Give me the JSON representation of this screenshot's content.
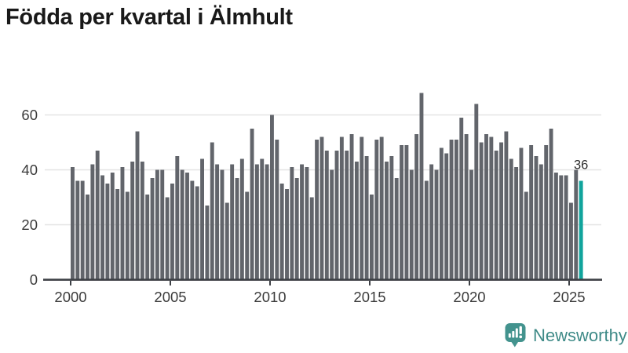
{
  "title": "Födda per kvartal i Älmhult",
  "colors": {
    "bar": "#62656b",
    "highlight": "#10a49c",
    "axis": "#3d4045",
    "grid": "#e4e4e4",
    "tick_text": "#3c3c3c",
    "value_label": "#2e2e2e",
    "title": "#191919",
    "logo": "#3e8a87",
    "logo_fill": "#43938e"
  },
  "chart_data": {
    "type": "bar",
    "title": "Födda per kvartal i Älmhult",
    "x_unit": "quarter",
    "x_start_year": 2000,
    "x_start_quarter": "Q1",
    "x_end_quarter": "2025-Q3",
    "values": [
      41,
      36,
      36,
      31,
      42,
      47,
      38,
      35,
      39,
      33,
      41,
      32,
      43,
      54,
      43,
      31,
      37,
      40,
      40,
      30,
      35,
      45,
      40,
      39,
      36,
      34,
      44,
      27,
      50,
      42,
      40,
      28,
      42,
      37,
      44,
      32,
      55,
      42,
      44,
      42,
      60,
      51,
      35,
      33,
      41,
      37,
      42,
      41,
      30,
      51,
      52,
      47,
      40,
      47,
      52,
      47,
      53,
      43,
      52,
      45,
      31,
      51,
      52,
      43,
      45,
      37,
      49,
      49,
      40,
      53,
      68,
      36,
      42,
      40,
      48,
      46,
      51,
      51,
      59,
      53,
      40,
      64,
      50,
      53,
      52,
      47,
      50,
      54,
      44,
      41,
      48,
      32,
      49,
      45,
      42,
      49,
      55,
      39,
      38,
      38,
      28,
      40,
      36
    ],
    "highlight_last": true,
    "last_value_label": "36",
    "x_ticks": [
      "2000",
      "2005",
      "2010",
      "2015",
      "2020",
      "2025"
    ],
    "y_ticks": [
      0,
      20,
      40,
      60
    ],
    "ylim": [
      0,
      68
    ],
    "grid": "horizontal",
    "legend": "none"
  },
  "footer": {
    "brand": "Newsworthy"
  }
}
